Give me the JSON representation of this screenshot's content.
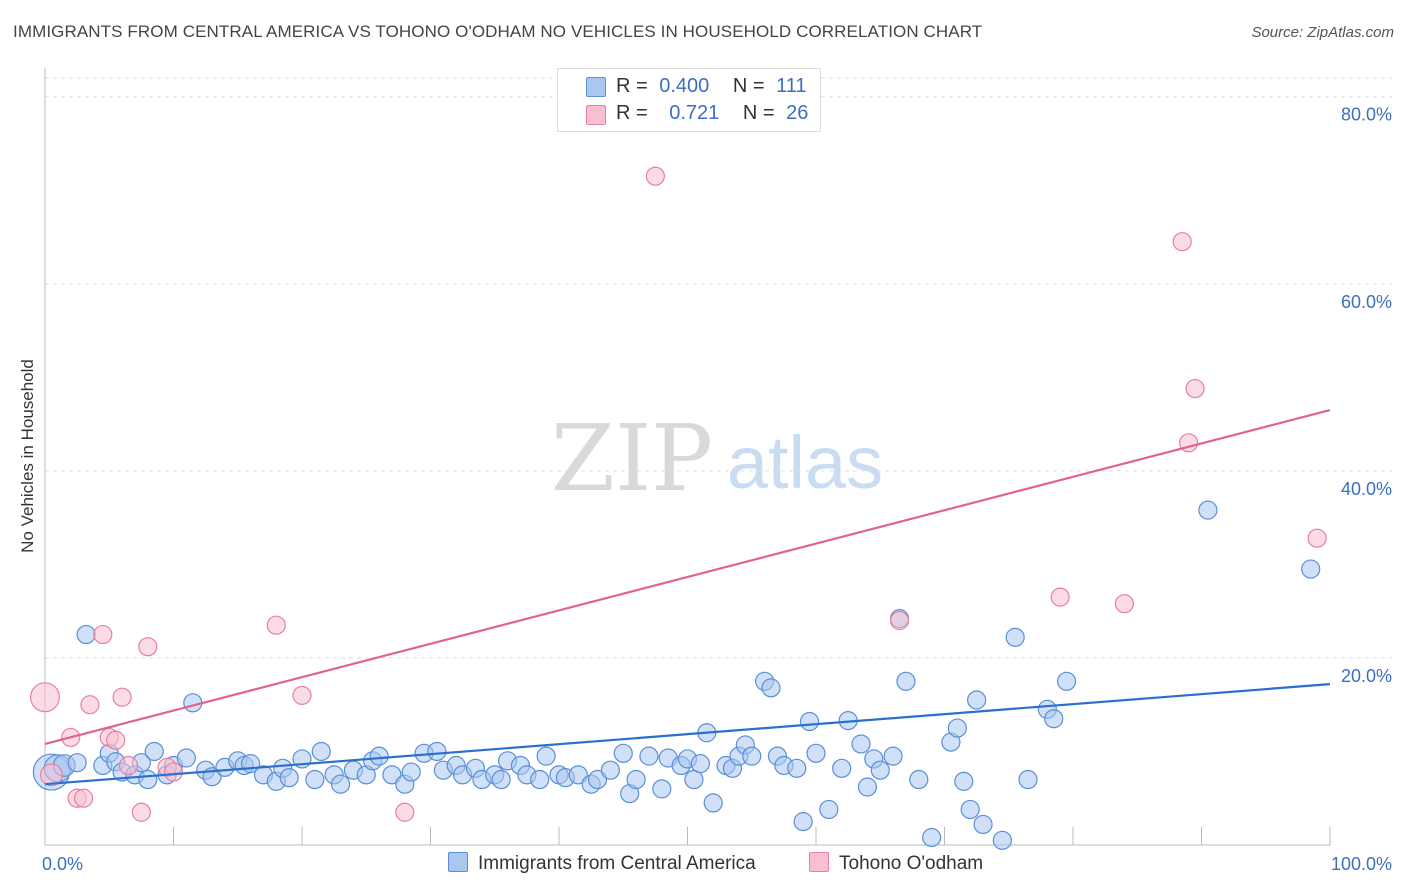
{
  "title": "IMMIGRANTS FROM CENTRAL AMERICA VS TOHONO O'ODHAM NO VEHICLES IN HOUSEHOLD CORRELATION CHART",
  "source": "Source: ZipAtlas.com",
  "watermark": {
    "zip": "ZIP",
    "atlas": "atlas"
  },
  "colors": {
    "blue_fill": "#a9c7f0",
    "blue_stroke": "#5a8fd6",
    "blue_line": "#2b6fcf",
    "pink_fill": "#f7bfd0",
    "pink_stroke": "#e87fa0",
    "pink_line": "#e0628d",
    "axis_text": "#3a6fc4",
    "grid": "#dddddd"
  },
  "legend": {
    "rows": [
      {
        "r_label": "R =",
        "r_value": "0.400",
        "n_label": "N =",
        "n_value": "111"
      },
      {
        "r_label": "R =",
        "r_value": "0.721",
        "n_label": "N =",
        "n_value": "26"
      }
    ]
  },
  "bottom_legend": {
    "series1": "Immigrants from Central America",
    "series2": "Tohono O'odham"
  },
  "chart_data": {
    "type": "scatter",
    "ylabel": "No Vehicles in Household",
    "x_tick_labels": [
      "0.0%",
      "100.0%"
    ],
    "y_tick_labels": [
      "20.0%",
      "40.0%",
      "60.0%",
      "80.0%"
    ],
    "y_ticks": [
      20,
      40,
      60,
      80
    ],
    "xlim": [
      0,
      100
    ],
    "ylim": [
      0,
      82
    ],
    "grid": "horizontal dashed",
    "series": [
      {
        "name": "Immigrants from Central America",
        "color": "#5a8fd6",
        "trend": {
          "x0": 0,
          "y0": 6.5,
          "x1": 100,
          "y1": 17.2
        },
        "points": [
          [
            0.5,
            7.8,
            2
          ],
          [
            1,
            8.2,
            1.5
          ],
          [
            1.5,
            8.5,
            1.2
          ],
          [
            2.5,
            8.8,
            1
          ],
          [
            3.2,
            22.5,
            1
          ],
          [
            4.5,
            8.5,
            1
          ],
          [
            5,
            9.8,
            1
          ],
          [
            5.5,
            8.9,
            1
          ],
          [
            6,
            7.8,
            1
          ],
          [
            7,
            7.5,
            1
          ],
          [
            7.5,
            8.8,
            1
          ],
          [
            8,
            7,
            1
          ],
          [
            8.5,
            10,
            1
          ],
          [
            9.5,
            7.5,
            1
          ],
          [
            10,
            8.5,
            1
          ],
          [
            11,
            9.3,
            1
          ],
          [
            11.5,
            15.2,
            1
          ],
          [
            12.5,
            8,
            1
          ],
          [
            13,
            7.3,
            1
          ],
          [
            14,
            8.3,
            1
          ],
          [
            15,
            9,
            1
          ],
          [
            15.5,
            8.5,
            1
          ],
          [
            16,
            8.7,
            1
          ],
          [
            17,
            7.5,
            1
          ],
          [
            18,
            6.8,
            1
          ],
          [
            18.5,
            8.2,
            1
          ],
          [
            19,
            7.2,
            1
          ],
          [
            20,
            9.2,
            1
          ],
          [
            21,
            7,
            1
          ],
          [
            21.5,
            10,
            1
          ],
          [
            22.5,
            7.5,
            1
          ],
          [
            23,
            6.5,
            1
          ],
          [
            24,
            8,
            1
          ],
          [
            25,
            7.5,
            1
          ],
          [
            25.5,
            9,
            1
          ],
          [
            26,
            9.5,
            1
          ],
          [
            27,
            7.5,
            1
          ],
          [
            28,
            6.5,
            1
          ],
          [
            28.5,
            7.8,
            1
          ],
          [
            29.5,
            9.8,
            1
          ],
          [
            30.5,
            10,
            1
          ],
          [
            31,
            8,
            1
          ],
          [
            32,
            8.5,
            1
          ],
          [
            32.5,
            7.5,
            1
          ],
          [
            33.5,
            8.2,
            1
          ],
          [
            34,
            7,
            1
          ],
          [
            35,
            7.5,
            1
          ],
          [
            35.5,
            7,
            1
          ],
          [
            36,
            9,
            1
          ],
          [
            37,
            8.5,
            1
          ],
          [
            37.5,
            7.5,
            1
          ],
          [
            38.5,
            7,
            1
          ],
          [
            39,
            9.5,
            1
          ],
          [
            40,
            7.5,
            1
          ],
          [
            40.5,
            7.2,
            1
          ],
          [
            41.5,
            7.5,
            1
          ],
          [
            42.5,
            6.5,
            1
          ],
          [
            43,
            7,
            1
          ],
          [
            44,
            8,
            1
          ],
          [
            45,
            9.8,
            1
          ],
          [
            45.5,
            5.5,
            1
          ],
          [
            46,
            7,
            1
          ],
          [
            47,
            9.5,
            1
          ],
          [
            48,
            6,
            1
          ],
          [
            48.5,
            9.3,
            1
          ],
          [
            49.5,
            8.5,
            1
          ],
          [
            50,
            9.2,
            1
          ],
          [
            50.5,
            7,
            1
          ],
          [
            51,
            8.7,
            1
          ],
          [
            51.5,
            12,
            1
          ],
          [
            52,
            4.5,
            1
          ],
          [
            53,
            8.5,
            1
          ],
          [
            53.5,
            8.2,
            1
          ],
          [
            54,
            9.5,
            1
          ],
          [
            54.5,
            10.7,
            1
          ],
          [
            55,
            9.5,
            1
          ],
          [
            56,
            17.5,
            1
          ],
          [
            56.5,
            16.8,
            1
          ],
          [
            57,
            9.5,
            1
          ],
          [
            57.5,
            8.5,
            1
          ],
          [
            58.5,
            8.2,
            1
          ],
          [
            59,
            2.5,
            1
          ],
          [
            59.5,
            13.2,
            1
          ],
          [
            60,
            9.8,
            1
          ],
          [
            61,
            3.8,
            1
          ],
          [
            62,
            8.2,
            1
          ],
          [
            62.5,
            13.3,
            1
          ],
          [
            63.5,
            10.8,
            1
          ],
          [
            64,
            6.2,
            1
          ],
          [
            64.5,
            9.2,
            1
          ],
          [
            65,
            8,
            1
          ],
          [
            66,
            9.5,
            1
          ],
          [
            67,
            17.5,
            1
          ],
          [
            68,
            7,
            1
          ],
          [
            69,
            0.8,
            1
          ],
          [
            70.5,
            11,
            1
          ],
          [
            71,
            12.5,
            1
          ],
          [
            71.5,
            6.8,
            1
          ],
          [
            72,
            3.8,
            1
          ],
          [
            72.5,
            15.5,
            1
          ],
          [
            73,
            2.2,
            1
          ],
          [
            75.5,
            22.2,
            1
          ],
          [
            74.5,
            0.5,
            1
          ],
          [
            76.5,
            7,
            1
          ],
          [
            78,
            14.5,
            1
          ],
          [
            78.5,
            13.5,
            1
          ],
          [
            79.5,
            17.5,
            1
          ],
          [
            90.5,
            35.8,
            1
          ],
          [
            98.5,
            29.5,
            1
          ],
          [
            66.5,
            24.2,
            1
          ]
        ]
      },
      {
        "name": "Tohono O'odham",
        "color": "#e87fa0",
        "trend": {
          "x0": 0,
          "y0": 10.8,
          "x1": 100,
          "y1": 46.5
        },
        "points": [
          [
            0,
            15.8,
            1.6
          ],
          [
            0.5,
            7.5,
            1.2
          ],
          [
            2,
            11.5,
            1
          ],
          [
            2.5,
            5,
            1
          ],
          [
            3,
            5,
            1
          ],
          [
            3.5,
            15,
            1
          ],
          [
            4.5,
            22.5,
            1
          ],
          [
            5,
            11.5,
            1
          ],
          [
            5.5,
            11.2,
            1
          ],
          [
            6,
            15.8,
            1
          ],
          [
            6.5,
            8.5,
            1
          ],
          [
            7.5,
            3.5,
            1
          ],
          [
            8,
            21.2,
            1
          ],
          [
            9.5,
            8.3,
            1
          ],
          [
            18,
            23.5,
            1
          ],
          [
            20,
            16,
            1
          ],
          [
            28,
            3.5,
            1
          ],
          [
            47.5,
            71.5,
            1
          ],
          [
            66.5,
            24,
            1
          ],
          [
            79,
            26.5,
            1
          ],
          [
            84,
            25.8,
            1
          ],
          [
            88.5,
            64.5,
            1
          ],
          [
            89.5,
            48.8,
            1
          ],
          [
            89,
            43,
            1
          ],
          [
            99,
            32.8,
            1
          ],
          [
            10,
            7.8,
            1
          ]
        ]
      }
    ]
  }
}
